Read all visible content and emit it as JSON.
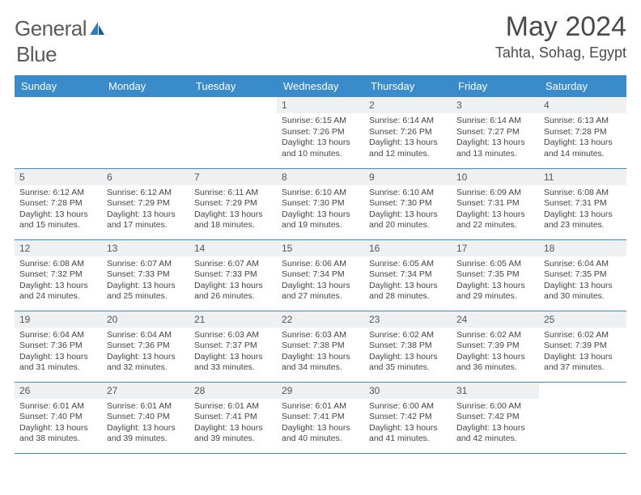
{
  "brand": {
    "name_part1": "General",
    "name_part2": "Blue"
  },
  "title": "May 2024",
  "location": "Tahta, Sohag, Egypt",
  "colors": {
    "header_bg": "#3a8bc9",
    "header_text": "#ffffff",
    "daynum_bg": "#eef0f1",
    "border": "#3a8bc9",
    "brand_gray": "#5a5a5a",
    "brand_blue": "#2f7bbf"
  },
  "weekdays": [
    "Sunday",
    "Monday",
    "Tuesday",
    "Wednesday",
    "Thursday",
    "Friday",
    "Saturday"
  ],
  "weeks": [
    [
      {
        "n": "",
        "lines": []
      },
      {
        "n": "",
        "lines": []
      },
      {
        "n": "",
        "lines": []
      },
      {
        "n": "1",
        "lines": [
          "Sunrise: 6:15 AM",
          "Sunset: 7:26 PM",
          "Daylight: 13 hours and 10 minutes."
        ]
      },
      {
        "n": "2",
        "lines": [
          "Sunrise: 6:14 AM",
          "Sunset: 7:26 PM",
          "Daylight: 13 hours and 12 minutes."
        ]
      },
      {
        "n": "3",
        "lines": [
          "Sunrise: 6:14 AM",
          "Sunset: 7:27 PM",
          "Daylight: 13 hours and 13 minutes."
        ]
      },
      {
        "n": "4",
        "lines": [
          "Sunrise: 6:13 AM",
          "Sunset: 7:28 PM",
          "Daylight: 13 hours and 14 minutes."
        ]
      }
    ],
    [
      {
        "n": "5",
        "lines": [
          "Sunrise: 6:12 AM",
          "Sunset: 7:28 PM",
          "Daylight: 13 hours and 15 minutes."
        ]
      },
      {
        "n": "6",
        "lines": [
          "Sunrise: 6:12 AM",
          "Sunset: 7:29 PM",
          "Daylight: 13 hours and 17 minutes."
        ]
      },
      {
        "n": "7",
        "lines": [
          "Sunrise: 6:11 AM",
          "Sunset: 7:29 PM",
          "Daylight: 13 hours and 18 minutes."
        ]
      },
      {
        "n": "8",
        "lines": [
          "Sunrise: 6:10 AM",
          "Sunset: 7:30 PM",
          "Daylight: 13 hours and 19 minutes."
        ]
      },
      {
        "n": "9",
        "lines": [
          "Sunrise: 6:10 AM",
          "Sunset: 7:30 PM",
          "Daylight: 13 hours and 20 minutes."
        ]
      },
      {
        "n": "10",
        "lines": [
          "Sunrise: 6:09 AM",
          "Sunset: 7:31 PM",
          "Daylight: 13 hours and 22 minutes."
        ]
      },
      {
        "n": "11",
        "lines": [
          "Sunrise: 6:08 AM",
          "Sunset: 7:31 PM",
          "Daylight: 13 hours and 23 minutes."
        ]
      }
    ],
    [
      {
        "n": "12",
        "lines": [
          "Sunrise: 6:08 AM",
          "Sunset: 7:32 PM",
          "Daylight: 13 hours and 24 minutes."
        ]
      },
      {
        "n": "13",
        "lines": [
          "Sunrise: 6:07 AM",
          "Sunset: 7:33 PM",
          "Daylight: 13 hours and 25 minutes."
        ]
      },
      {
        "n": "14",
        "lines": [
          "Sunrise: 6:07 AM",
          "Sunset: 7:33 PM",
          "Daylight: 13 hours and 26 minutes."
        ]
      },
      {
        "n": "15",
        "lines": [
          "Sunrise: 6:06 AM",
          "Sunset: 7:34 PM",
          "Daylight: 13 hours and 27 minutes."
        ]
      },
      {
        "n": "16",
        "lines": [
          "Sunrise: 6:05 AM",
          "Sunset: 7:34 PM",
          "Daylight: 13 hours and 28 minutes."
        ]
      },
      {
        "n": "17",
        "lines": [
          "Sunrise: 6:05 AM",
          "Sunset: 7:35 PM",
          "Daylight: 13 hours and 29 minutes."
        ]
      },
      {
        "n": "18",
        "lines": [
          "Sunrise: 6:04 AM",
          "Sunset: 7:35 PM",
          "Daylight: 13 hours and 30 minutes."
        ]
      }
    ],
    [
      {
        "n": "19",
        "lines": [
          "Sunrise: 6:04 AM",
          "Sunset: 7:36 PM",
          "Daylight: 13 hours and 31 minutes."
        ]
      },
      {
        "n": "20",
        "lines": [
          "Sunrise: 6:04 AM",
          "Sunset: 7:36 PM",
          "Daylight: 13 hours and 32 minutes."
        ]
      },
      {
        "n": "21",
        "lines": [
          "Sunrise: 6:03 AM",
          "Sunset: 7:37 PM",
          "Daylight: 13 hours and 33 minutes."
        ]
      },
      {
        "n": "22",
        "lines": [
          "Sunrise: 6:03 AM",
          "Sunset: 7:38 PM",
          "Daylight: 13 hours and 34 minutes."
        ]
      },
      {
        "n": "23",
        "lines": [
          "Sunrise: 6:02 AM",
          "Sunset: 7:38 PM",
          "Daylight: 13 hours and 35 minutes."
        ]
      },
      {
        "n": "24",
        "lines": [
          "Sunrise: 6:02 AM",
          "Sunset: 7:39 PM",
          "Daylight: 13 hours and 36 minutes."
        ]
      },
      {
        "n": "25",
        "lines": [
          "Sunrise: 6:02 AM",
          "Sunset: 7:39 PM",
          "Daylight: 13 hours and 37 minutes."
        ]
      }
    ],
    [
      {
        "n": "26",
        "lines": [
          "Sunrise: 6:01 AM",
          "Sunset: 7:40 PM",
          "Daylight: 13 hours and 38 minutes."
        ]
      },
      {
        "n": "27",
        "lines": [
          "Sunrise: 6:01 AM",
          "Sunset: 7:40 PM",
          "Daylight: 13 hours and 39 minutes."
        ]
      },
      {
        "n": "28",
        "lines": [
          "Sunrise: 6:01 AM",
          "Sunset: 7:41 PM",
          "Daylight: 13 hours and 39 minutes."
        ]
      },
      {
        "n": "29",
        "lines": [
          "Sunrise: 6:01 AM",
          "Sunset: 7:41 PM",
          "Daylight: 13 hours and 40 minutes."
        ]
      },
      {
        "n": "30",
        "lines": [
          "Sunrise: 6:00 AM",
          "Sunset: 7:42 PM",
          "Daylight: 13 hours and 41 minutes."
        ]
      },
      {
        "n": "31",
        "lines": [
          "Sunrise: 6:00 AM",
          "Sunset: 7:42 PM",
          "Daylight: 13 hours and 42 minutes."
        ]
      },
      {
        "n": "",
        "lines": []
      }
    ]
  ]
}
